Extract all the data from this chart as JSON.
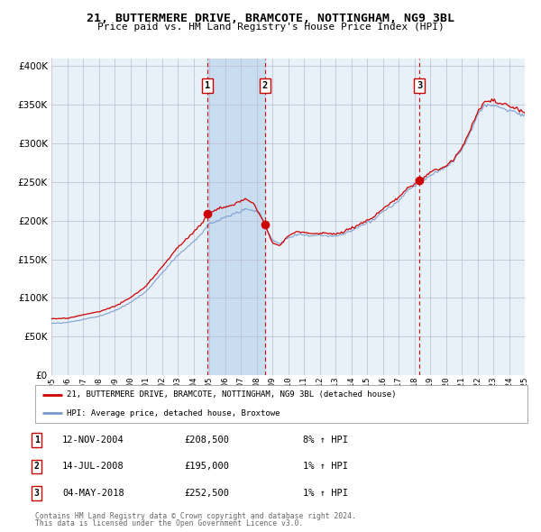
{
  "title1": "21, BUTTERMERE DRIVE, BRAMCOTE, NOTTINGHAM, NG9 3BL",
  "title2": "Price paid vs. HM Land Registry's House Price Index (HPI)",
  "title_fontsize": 9.5,
  "subtitle_fontsize": 8.0,
  "background_color": "#ffffff",
  "plot_bg_color": "#e8f0f8",
  "grid_color": "#bbbbcc",
  "red_line_color": "#cc0000",
  "blue_line_color": "#7799cc",
  "shade_color": "#c8ddf0",
  "sale_marker_color": "#cc0000",
  "vline_color": "#cc0000",
  "ylim": [
    0,
    410000
  ],
  "yticks": [
    0,
    50000,
    100000,
    150000,
    200000,
    250000,
    300000,
    350000,
    400000
  ],
  "ytick_labels": [
    "£0",
    "£50K",
    "£100K",
    "£150K",
    "£200K",
    "£250K",
    "£300K",
    "£350K",
    "£400K"
  ],
  "x_start_year": 1995,
  "x_end_year": 2025,
  "sale1_date": 2004.87,
  "sale1_price": 208500,
  "sale2_date": 2008.54,
  "sale2_price": 195000,
  "sale3_date": 2018.34,
  "sale3_price": 252500,
  "legend1_text": "21, BUTTERMERE DRIVE, BRAMCOTE, NOTTINGHAM, NG9 3BL (detached house)",
  "legend2_text": "HPI: Average price, detached house, Broxtowe",
  "table_rows": [
    {
      "num": "1",
      "date": "12-NOV-2004",
      "price": "£208,500",
      "hpi": "8% ↑ HPI"
    },
    {
      "num": "2",
      "date": "14-JUL-2008",
      "price": "£195,000",
      "hpi": "1% ↑ HPI"
    },
    {
      "num": "3",
      "date": "04-MAY-2018",
      "price": "£252,500",
      "hpi": "1% ↑ HPI"
    }
  ],
  "footnote1": "Contains HM Land Registry data © Crown copyright and database right 2024.",
  "footnote2": "This data is licensed under the Open Government Licence v3.0."
}
